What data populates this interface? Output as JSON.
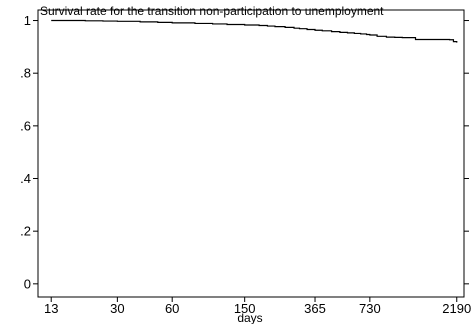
{
  "chart_data": {
    "type": "line",
    "title": "Survival rate for the transition non-participation to unemployment",
    "xlabel": "days",
    "ylabel": "",
    "x_scale": "log",
    "xlim": [
      11,
      2400
    ],
    "ylim": [
      -0.05,
      1.04
    ],
    "x_ticks": [
      {
        "value": 13,
        "label": "13"
      },
      {
        "value": 30,
        "label": "30"
      },
      {
        "value": 60,
        "label": "60"
      },
      {
        "value": 150,
        "label": "150"
      },
      {
        "value": 365,
        "label": "365"
      },
      {
        "value": 730,
        "label": "730"
      },
      {
        "value": 2190,
        "label": "2190"
      }
    ],
    "y_ticks": [
      {
        "value": 0,
        "label": "0"
      },
      {
        "value": 0.2,
        "label": ".2"
      },
      {
        "value": 0.4,
        "label": ".4"
      },
      {
        "value": 0.6,
        "label": ".6"
      },
      {
        "value": 0.8,
        "label": ".8"
      },
      {
        "value": 1,
        "label": "1"
      }
    ],
    "grid": false,
    "legend": "none",
    "step": true,
    "series": [
      {
        "color": "#000000",
        "x": [
          13,
          20,
          25,
          30,
          40,
          50,
          60,
          80,
          100,
          120,
          150,
          180,
          200,
          220,
          250,
          280,
          300,
          330,
          365,
          400,
          450,
          500,
          550,
          600,
          650,
          700,
          730,
          800,
          900,
          1000,
          1100,
          1300,
          1500,
          1800,
          2000,
          2100,
          2190
        ],
        "y": [
          1.0,
          0.999,
          0.998,
          0.997,
          0.995,
          0.993,
          0.991,
          0.989,
          0.987,
          0.985,
          0.983,
          0.981,
          0.979,
          0.977,
          0.974,
          0.971,
          0.969,
          0.966,
          0.963,
          0.961,
          0.958,
          0.955,
          0.953,
          0.951,
          0.949,
          0.947,
          0.945,
          0.94,
          0.937,
          0.936,
          0.935,
          0.928,
          0.928,
          0.928,
          0.927,
          0.92,
          0.916
        ]
      }
    ]
  }
}
